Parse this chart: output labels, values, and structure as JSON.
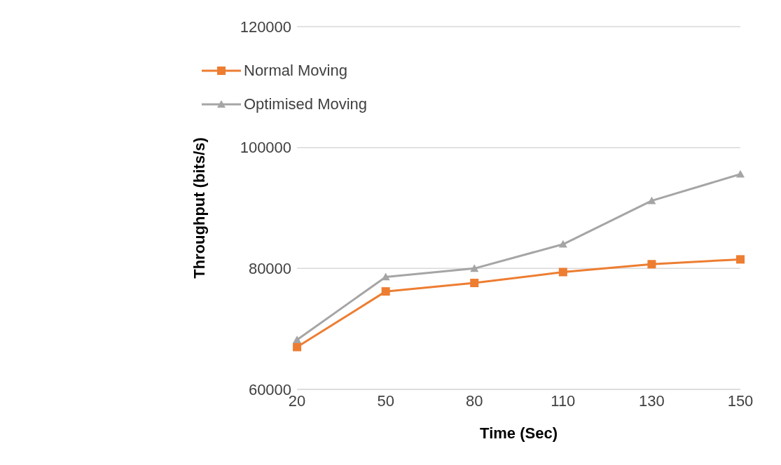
{
  "chart_data": {
    "type": "line",
    "xlabel": "Time (Sec)",
    "ylabel": "Throughput (bits/s)",
    "categories": [
      "20",
      "50",
      "80",
      "110",
      "130",
      "150"
    ],
    "series": [
      {
        "name": "Normal Moving",
        "color": "#ed7d31",
        "marker": "square",
        "values": [
          67000,
          76200,
          77600,
          79400,
          80700,
          81500
        ]
      },
      {
        "name": "Optimised Moving",
        "color": "#a5a5a5",
        "marker": "triangle",
        "values": [
          68200,
          78600,
          80000,
          84000,
          91200,
          95600
        ]
      }
    ],
    "ylim": [
      60000,
      120000
    ],
    "yticks": [
      60000,
      80000,
      100000,
      120000
    ],
    "grid": "y",
    "legend": "top left"
  }
}
